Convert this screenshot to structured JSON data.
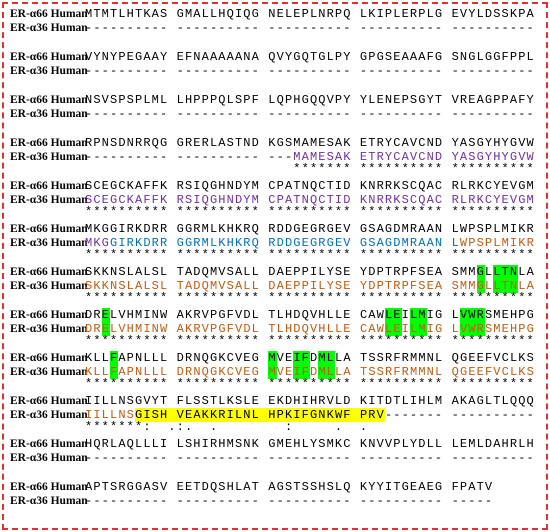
{
  "blocks": [
    {
      "rows": [
        {
          "label": "ER-α66 Human",
          "segments": [
            {
              "text": "MTMTLHTKAS GMALLHQIQG NELEPLNRPQ LKIPLERPLG EVYLDSSKPA",
              "color": "#000000"
            }
          ]
        },
        {
          "label": "ER-α36 Human",
          "segments": [
            {
              "text": "---------- ---------- ---------- ---------- ----------",
              "color": "#000000"
            }
          ]
        }
      ]
    },
    {
      "rows": [
        {
          "label": "ER-α66 Human",
          "segments": [
            {
              "text": "VYNYPEGAAY EFNAAAAANA QVYGQTGLPY GPGSEAAAFG SNGLGGFPPL",
              "color": "#000000"
            }
          ]
        },
        {
          "label": "ER-α36 Human",
          "segments": [
            {
              "text": "---------- ---------- ---------- ---------- ----------",
              "color": "#000000"
            }
          ]
        }
      ]
    },
    {
      "rows": [
        {
          "label": "ER-α66 Human",
          "segments": [
            {
              "text": "NSVSPSPLML LHPPPQLSPF LQPHGQQVPY YLENEPSGYT VREAGPPAFY",
              "color": "#000000"
            }
          ]
        },
        {
          "label": "ER-α36 Human",
          "segments": [
            {
              "text": "---------- ---------- ---------- ---------- ----------",
              "color": "#000000"
            }
          ]
        }
      ]
    },
    {
      "rows": [
        {
          "label": "ER-α66 Human",
          "segments": [
            {
              "text": "RPNSDNRRQG GRERLASTND KGSMAMESAK ETRYCAVCND YASGYHYGVW",
              "color": "#000000"
            }
          ]
        },
        {
          "label": "ER-α36 Human",
          "segments": [
            {
              "text": "---------- ---------- ---",
              "color": "#000000"
            },
            {
              "text": "MAMESAK ETRYCAVCND YASGYHYGVW",
              "color": "#7030a0"
            }
          ]
        }
      ],
      "conservation": "                         ******* ********** **********"
    },
    {
      "rows": [
        {
          "label": "ER-α66 Human",
          "segments": [
            {
              "text": "SCEGCKAFFK RSIQGHNDYM CPATNQCTID KNRRKSCQAC RLRKCYEVGM",
              "color": "#000000"
            }
          ]
        },
        {
          "label": "ER-α36 Human",
          "segments": [
            {
              "text": "SCEGCKAFFK RSIQGHNDYM CPATNQCTID KNRRKSCQAC RLRKCYEVGM",
              "color": "#7030a0"
            }
          ]
        }
      ],
      "conservation": "********** ********** ********** ********** **********"
    },
    {
      "rows": [
        {
          "label": "ER-α66 Human",
          "segments": [
            {
              "text": "MKGGIRKDRR GGRMLKHKRQ RDDGEGRGEV GSAGDMRAAN LWPSPLMIKR",
              "color": "#000000"
            }
          ]
        },
        {
          "label": "ER-α36 Human",
          "segments": [
            {
              "text": "MKG",
              "color": "#7030a0"
            },
            {
              "text": "GIRKDRR GGRMLKHKRQ RDDGEGRGEV GSAGDMRAAN L",
              "color": "#0070c0"
            },
            {
              "text": "WPSPLMIKR",
              "color": "#c55a11"
            }
          ]
        }
      ],
      "conservation": "********** ********** ********** ********** **********"
    },
    {
      "rows": [
        {
          "label": "ER-α66 Human",
          "segments": [
            {
              "text": "SKKNSLALSL TADQMVSALL DAEPPILYSE YDPTRPFSEA SMM",
              "color": "#000000"
            },
            {
              "text": "G",
              "color": "#000000",
              "highlight": "#00ff00"
            },
            {
              "text": "L",
              "color": "#000000"
            },
            {
              "text": "LTN",
              "color": "#000000",
              "highlight": "#00ff00"
            },
            {
              "text": "LA",
              "color": "#000000"
            }
          ]
        },
        {
          "label": "ER-α36 Human",
          "segments": [
            {
              "text": "SKKNSLALSL TADQMVSALL DAEPPILYSE YDPTRPFSEA SMM",
              "color": "#c55a11"
            },
            {
              "text": "G",
              "color": "#c55a11",
              "highlight": "#00ff00"
            },
            {
              "text": "L",
              "color": "#c55a11"
            },
            {
              "text": "LTN",
              "color": "#c55a11",
              "highlight": "#00ff00"
            },
            {
              "text": "LA",
              "color": "#c55a11"
            }
          ]
        }
      ],
      "conservation": "********** ********** ********** ********** **********"
    },
    {
      "rows": [
        {
          "label": "ER-α66 Human",
          "segments": [
            {
              "text": "DR",
              "color": "#000000"
            },
            {
              "text": "E",
              "color": "#000000",
              "highlight": "#00ff00"
            },
            {
              "text": "LVHMINW AKRVPGFVDL TLHDQVHLLE CAW",
              "color": "#000000"
            },
            {
              "text": "LE",
              "color": "#000000",
              "highlight": "#00ff00"
            },
            {
              "text": "I",
              "color": "#000000"
            },
            {
              "text": "LM",
              "color": "#000000",
              "highlight": "#00ff00"
            },
            {
              "text": "IG L",
              "color": "#000000"
            },
            {
              "text": "VWR",
              "color": "#000000",
              "highlight": "#00ff00"
            },
            {
              "text": "SMEHPG",
              "color": "#000000"
            }
          ]
        },
        {
          "label": "ER-α36 Human",
          "segments": [
            {
              "text": "DR",
              "color": "#c55a11"
            },
            {
              "text": "E",
              "color": "#c55a11",
              "highlight": "#00ff00"
            },
            {
              "text": "LVHMINW AKRVPGFVDL TLHDQVHLLE CAW",
              "color": "#c55a11"
            },
            {
              "text": "LE",
              "color": "#c55a11",
              "highlight": "#00ff00"
            },
            {
              "text": "I",
              "color": "#c55a11"
            },
            {
              "text": "LM",
              "color": "#c55a11",
              "highlight": "#00ff00"
            },
            {
              "text": "IG L",
              "color": "#c55a11"
            },
            {
              "text": "VWR",
              "color": "#c55a11",
              "highlight": "#00ff00"
            },
            {
              "text": "SMEHPG",
              "color": "#c55a11"
            }
          ]
        }
      ],
      "conservation": "********** ********** ********** ********** **********"
    },
    {
      "rows": [
        {
          "label": "ER-α66 Human",
          "segments": [
            {
              "text": "KLL",
              "color": "#000000"
            },
            {
              "text": "F",
              "color": "#000000",
              "highlight": "#00ff00"
            },
            {
              "text": "APNLLL DRNQGKCVEG ",
              "color": "#000000"
            },
            {
              "text": "M",
              "color": "#000000",
              "highlight": "#00ff00"
            },
            {
              "text": "VE",
              "color": "#000000"
            },
            {
              "text": "IF",
              "color": "#000000",
              "highlight": "#00ff00"
            },
            {
              "text": "D",
              "color": "#000000"
            },
            {
              "text": "ML",
              "color": "#000000",
              "highlight": "#00ff00"
            },
            {
              "text": "LA TSSRFRMMNL QGEEFVCLKS",
              "color": "#000000"
            }
          ]
        },
        {
          "label": "ER-α36 Human",
          "segments": [
            {
              "text": "KLL",
              "color": "#c55a11"
            },
            {
              "text": "F",
              "color": "#c55a11",
              "highlight": "#00ff00"
            },
            {
              "text": "APNLLL DRNQGKCVEG ",
              "color": "#c55a11"
            },
            {
              "text": "M",
              "color": "#c55a11",
              "highlight": "#00ff00"
            },
            {
              "text": "VE",
              "color": "#c55a11"
            },
            {
              "text": "IF",
              "color": "#c55a11",
              "highlight": "#00ff00"
            },
            {
              "text": "D",
              "color": "#c55a11"
            },
            {
              "text": "ML",
              "color": "#c55a11",
              "highlight": "#00ff00"
            },
            {
              "text": "LA TSSRFRMMNL QGEEFVCLKS",
              "color": "#c55a11"
            }
          ]
        }
      ],
      "conservation": "********** ********** ********** ********** **********"
    },
    {
      "rows": [
        {
          "label": "ER-α66 Human",
          "segments": [
            {
              "text": "IILLNSGVYT FLSSTLKSLE EKDHIHRVLD KITDTLIHLM AKAGLTLQQQ",
              "color": "#000000"
            }
          ]
        },
        {
          "label": "ER-α36 Human",
          "segments": [
            {
              "text": "IILLNS",
              "color": "#c55a11"
            },
            {
              "text": "GISH VEAKKRILNL HPKIFGNKWF PRV",
              "color": "#000000",
              "highlight": "#ffff00"
            },
            {
              "text": "------- ----------",
              "color": "#000000"
            }
          ]
        }
      ],
      "conservation": "*******:  .:.  .        :     .  ."
    },
    {
      "rows": [
        {
          "label": "ER-α66 Human",
          "segments": [
            {
              "text": "HQRLAQLLLI LSHIRHMSNK GMEHLYSMKC KNVVPLYDLL LEMLDAHRLH",
              "color": "#000000"
            }
          ]
        },
        {
          "label": "ER-α36 Human",
          "segments": [
            {
              "text": "---------- ---------- ---------- ---------- ----------",
              "color": "#000000"
            }
          ]
        }
      ]
    },
    {
      "rows": [
        {
          "label": "ER-α66 Human",
          "segments": [
            {
              "text": "APTSRGGASV EETDQSHLAT AGSTSSHSLQ KYYITGEAEG FPATV",
              "color": "#000000"
            }
          ]
        },
        {
          "label": "ER-α36 Human",
          "segments": [
            {
              "text": "---------- ---------- ---------- ---------- -----",
              "color": "#000000"
            }
          ]
        }
      ]
    }
  ]
}
